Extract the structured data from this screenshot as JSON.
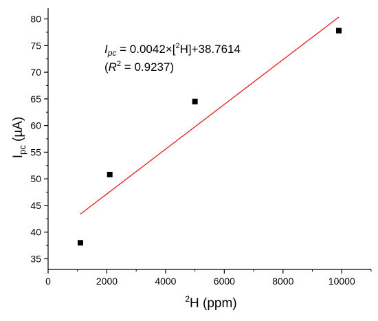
{
  "chart_data": {
    "type": "scatter",
    "x": [
      1100,
      2100,
      5000,
      9900
    ],
    "y": [
      38.0,
      50.8,
      64.5,
      77.8
    ],
    "fit_line": {
      "slope": 0.0042,
      "intercept": 38.7614,
      "x_range": [
        1100,
        9900
      ],
      "color": "#e8181b"
    },
    "marker_color": "#000000",
    "xlim": [
      0,
      11000
    ],
    "ylim": [
      33,
      82
    ],
    "xticks": [
      0,
      2000,
      4000,
      6000,
      8000,
      10000
    ],
    "yticks": [
      35,
      40,
      45,
      50,
      55,
      60,
      65,
      70,
      75,
      80
    ],
    "xlabel": {
      "sup": "2",
      "text": "H (ppm)"
    },
    "ylabel": {
      "main": "I",
      "sub": "pc",
      "rest": " (µA)"
    },
    "annotations": {
      "equation": {
        "var": "I",
        "var_sub": "pc",
        "text1": " = 0.0042×[",
        "sup": "2",
        "text2": "H]+38.7614"
      },
      "r2": {
        "open": "(",
        "var": "R",
        "sup": "2",
        "text": " = 0.9237)"
      }
    },
    "grid": false,
    "legend": "none"
  }
}
